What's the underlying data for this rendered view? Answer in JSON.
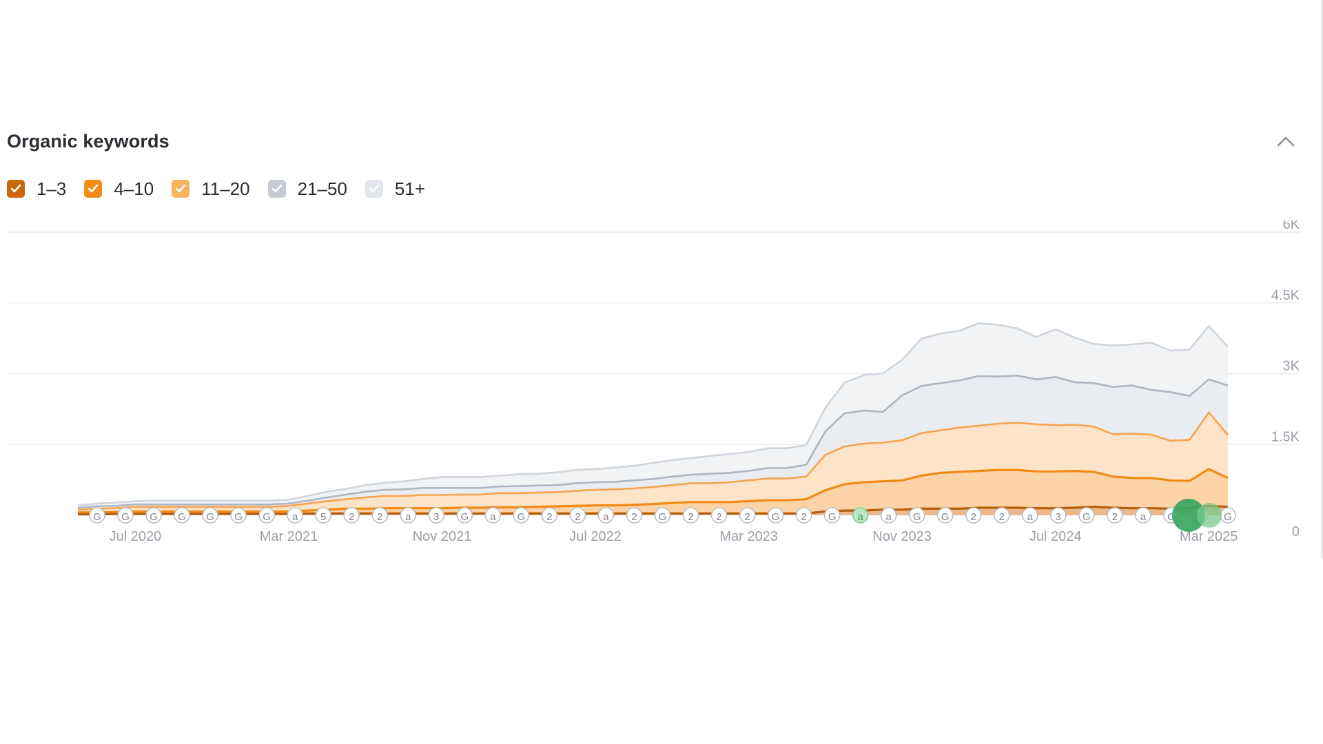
{
  "widget": {
    "title": "Organic keywords"
  },
  "legend": [
    {
      "label": "1–3",
      "color": "#c9670a",
      "checked": true
    },
    {
      "label": "4–10",
      "color": "#f28c17",
      "checked": true
    },
    {
      "label": "11–20",
      "color": "#f9b35c",
      "checked": true
    },
    {
      "label": "21–50",
      "color": "#c7ccd4",
      "checked": true
    },
    {
      "label": "51+",
      "color": "#e3e6ea",
      "checked": true
    }
  ],
  "icons": {
    "collapse": "chevron-up-icon",
    "checkbox": "checkmark-icon"
  },
  "chart_data": {
    "type": "area",
    "stacked": true,
    "x_tick_labels": [
      "Jul 2020",
      "Mar 2021",
      "Nov 2021",
      "Jul 2022",
      "Mar 2023",
      "Nov 2023",
      "Jul 2024",
      "Mar 2025"
    ],
    "y_tick_labels": [
      "0",
      "1.5K",
      "3K",
      "4.5K",
      "6K"
    ],
    "ylim": [
      0,
      6000
    ],
    "y_axis_side": "right",
    "grid": true,
    "x_months_from": "Apr 2020",
    "x_months_to": "Mar 2025",
    "series": [
      {
        "name": "1–3",
        "color": "#c9670a",
        "values": [
          20,
          20,
          30,
          30,
          30,
          30,
          30,
          30,
          30,
          30,
          30,
          30,
          40,
          40,
          40,
          40,
          40,
          40,
          40,
          40,
          40,
          40,
          40,
          40,
          40,
          40,
          40,
          40,
          40,
          40,
          40,
          40,
          40,
          40,
          40,
          40,
          40,
          40,
          40,
          80,
          100,
          100,
          120,
          120,
          140,
          140,
          140,
          160,
          160,
          160,
          150,
          150,
          160,
          180,
          160,
          150,
          150,
          140,
          150,
          200,
          180
        ]
      },
      {
        "name": "4–10",
        "color": "#f28c17",
        "values": [
          40,
          40,
          40,
          50,
          50,
          50,
          50,
          50,
          50,
          50,
          50,
          50,
          60,
          80,
          100,
          100,
          110,
          110,
          110,
          110,
          120,
          120,
          130,
          130,
          140,
          150,
          160,
          170,
          170,
          180,
          200,
          220,
          240,
          240,
          240,
          260,
          280,
          280,
          300,
          450,
          560,
          600,
          600,
          620,
          700,
          760,
          780,
          780,
          800,
          800,
          780,
          780,
          780,
          740,
          660,
          640,
          640,
          600,
          580,
          780,
          610
        ]
      },
      {
        "name": "11–20",
        "color": "#f9b35c",
        "values": [
          60,
          80,
          80,
          100,
          100,
          100,
          100,
          100,
          100,
          100,
          100,
          120,
          150,
          180,
          200,
          240,
          260,
          260,
          280,
          280,
          280,
          280,
          300,
          300,
          300,
          300,
          320,
          330,
          340,
          350,
          360,
          380,
          400,
          400,
          420,
          440,
          460,
          460,
          480,
          750,
          800,
          820,
          820,
          850,
          900,
          900,
          940,
          960,
          980,
          1000,
          1000,
          980,
          980,
          960,
          900,
          940,
          920,
          840,
          870,
          1200,
          910
        ]
      },
      {
        "name": "21–50",
        "color": "#c7ccd4",
        "values": [
          40,
          50,
          50,
          50,
          50,
          50,
          50,
          50,
          50,
          50,
          50,
          50,
          60,
          80,
          100,
          120,
          130,
          140,
          150,
          150,
          140,
          140,
          140,
          150,
          150,
          150,
          160,
          160,
          160,
          170,
          170,
          180,
          180,
          200,
          200,
          200,
          220,
          220,
          250,
          500,
          700,
          700,
          650,
          950,
          1000,
          1000,
          1000,
          1050,
          1000,
          1000,
          950,
          1020,
          900,
          920,
          1000,
          1020,
          950,
          1030,
          930,
          700,
          1050
        ]
      },
      {
        "name": "51+",
        "color": "#e3e6ea",
        "values": [
          50,
          60,
          70,
          70,
          80,
          80,
          80,
          80,
          80,
          80,
          80,
          80,
          100,
          120,
          120,
          140,
          150,
          170,
          190,
          230,
          230,
          230,
          230,
          250,
          250,
          270,
          280,
          280,
          300,
          310,
          340,
          350,
          350,
          380,
          400,
          400,
          420,
          420,
          420,
          500,
          650,
          750,
          820,
          750,
          1000,
          1050,
          1050,
          1120,
          1100,
          1000,
          900,
          1010,
          950,
          830,
          880,
          870,
          1000,
          880,
          980,
          1130,
          820
        ]
      }
    ],
    "annotation_markers": [
      "G",
      "G",
      "G",
      "G",
      "G",
      "G",
      "G",
      "a",
      "5",
      "2",
      "2",
      "a",
      "3",
      "G",
      "a",
      "G",
      "2",
      "2",
      "a",
      "2",
      "G",
      "2",
      "2",
      "2",
      "G",
      "2",
      "G",
      "a",
      "a",
      "G",
      "G",
      "2",
      "2",
      "a",
      "3",
      "G",
      "2",
      "a",
      "G",
      "2",
      "G"
    ]
  }
}
